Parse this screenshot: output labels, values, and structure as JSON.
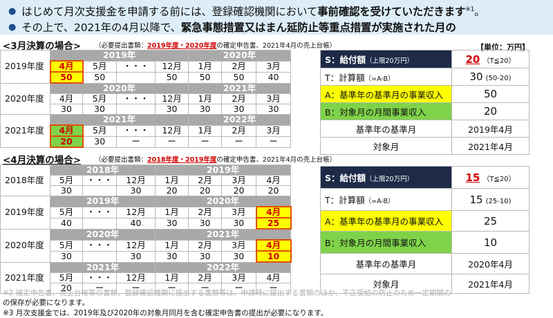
{
  "banner": {
    "line1_text": "はじめて月次支援金を申請する前には、登録確認機関において",
    "line1_bold": "事前確認を受けていただきます",
    "line1_sup": "※1",
    "line1_end": "。",
    "line2_text": "その上で、2021年の4月以降で、",
    "line2_bold": "緊急事態措置又はまん延防止等重点措置が実施された月の"
  },
  "march": {
    "title": "<3月決算の場合>",
    "note_prefix": "（必要提出書類：",
    "note_red": "2019年度・2020年度",
    "note_suffix": "の確定申告書、2021年4月の売上台帳）",
    "unit": "【単位：万円】",
    "rows": [
      {
        "label": "2019年度",
        "years": [
          "2019年",
          "2020年"
        ],
        "months": [
          "4月",
          "5月",
          "・・・",
          "12月",
          "1月",
          "2月",
          "3月"
        ],
        "values": [
          "50",
          "50",
          "",
          "50",
          "50",
          "50",
          "40"
        ]
      },
      {
        "label": "2020年度",
        "years": [
          "2020年",
          "2021年"
        ],
        "months": [
          "4月",
          "5月",
          "・・・",
          "12月",
          "1月",
          "2月",
          "3月"
        ],
        "values": [
          "30",
          "30",
          "",
          "30",
          "30",
          "30",
          "30"
        ]
      },
      {
        "label": "2021年度",
        "years": [
          "2021年",
          "2022年"
        ],
        "months": [
          "4月",
          "5月",
          "・・・",
          "12月",
          "1月",
          "2月",
          "3月"
        ],
        "values": [
          "20",
          "30",
          "ー",
          "ー",
          "ー",
          "ー",
          "ー"
        ]
      }
    ],
    "summary": {
      "s_label": "S：給付額",
      "s_small": "（上限20万円）",
      "s_value": "20",
      "s_cond": "（T≦20）",
      "t_label": "T：計算額",
      "t_small": "（=A-B）",
      "t_value": "30",
      "t_cond": "(50-20)",
      "a_label": "A：基準年の基準月の事業収入",
      "a_value": "50",
      "b_label": "B：対象月の月間事業収入",
      "b_value": "20",
      "base_label": "基準年の基準月",
      "base_value": "2019年4月",
      "target_label": "対象月",
      "target_value": "2021年4月"
    }
  },
  "april": {
    "title": "<4月決算の場合>",
    "note_prefix": "（必要提出書類：",
    "note_red": "2018年度・2019年度",
    "note_suffix": "の確定申告書、2021年4月の売上台帳）",
    "rows": [
      {
        "label": "2018年度",
        "years": [
          "2018年",
          "2019年"
        ],
        "months": [
          "5月",
          "・・・",
          "12月",
          "1月",
          "2月",
          "3月",
          "4月"
        ],
        "values": [
          "30",
          "",
          "30",
          "20",
          "20",
          "20",
          "20"
        ]
      },
      {
        "label": "2019年度",
        "years": [
          "2019年",
          "2020年"
        ],
        "months": [
          "5月",
          "・・・",
          "12月",
          "1月",
          "2月",
          "3月",
          "4月"
        ],
        "values": [
          "40",
          "",
          "40",
          "30",
          "30",
          "30",
          "25"
        ]
      },
      {
        "label": "2020年度",
        "years": [
          "2020年",
          "2021年"
        ],
        "months": [
          "5月",
          "・・・",
          "12月",
          "1月",
          "2月",
          "3月",
          "4月"
        ],
        "values": [
          "30",
          "",
          "30",
          "30",
          "30",
          "30",
          "10"
        ]
      },
      {
        "label": "2021年度",
        "years": [
          "2021年",
          "2022年"
        ],
        "months": [
          "5月",
          "・・・",
          "12月",
          "1月",
          "2月",
          "3月",
          "4月"
        ],
        "values": [
          "20",
          "ー",
          "ー",
          "ー",
          "ー",
          "ー",
          "ー"
        ]
      }
    ],
    "summary": {
      "s_label": "S：給付額",
      "s_small": "（上限20万円）",
      "s_value": "15",
      "s_cond": "（T≦20）",
      "t_label": "T：計算額",
      "t_small": "（=A-B）",
      "t_value": "15",
      "t_cond": "(25-10)",
      "a_label": "A：基準年の基準月の事業収入",
      "a_value": "25",
      "b_label": "B：対象月の月間事業収入",
      "b_value": "10",
      "base_label": "基準年の基準月",
      "base_value": "2020年4月",
      "target_label": "対象月",
      "target_value": "2021年4月"
    }
  },
  "footnotes": {
    "faint": "※2 確定申告書、売上台帳等の書類、登録確認機関に提出する書類等は、申請時に提出する書類のほか、不正受給の防止のため一定期間の",
    "line1": "の保存が必要になります。",
    "line2": "※3 月次支援金では、2019年及び2020年の対象月同月を含む確定申告書の提出が必要になります。"
  }
}
